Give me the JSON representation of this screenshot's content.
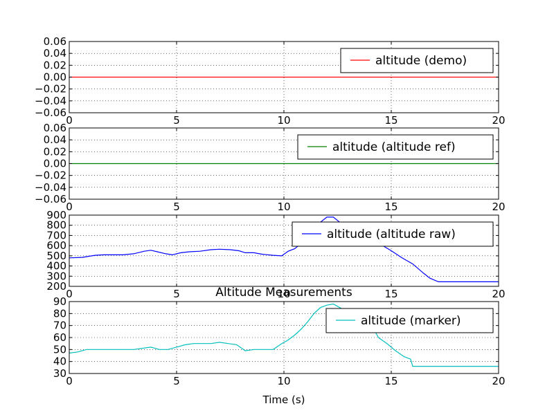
{
  "figure": {
    "title": "Altitude Measurements",
    "xlabel": "Time (s)"
  },
  "chart_data": [
    {
      "type": "line",
      "xlim": [
        0,
        20
      ],
      "ylim": [
        -0.06,
        0.06
      ],
      "xticks": [
        "0",
        "5",
        "10",
        "15",
        "20"
      ],
      "yticks": [
        "0.06",
        "0.04",
        "0.02",
        "0.00",
        "−0.02",
        "−0.04",
        "−0.06"
      ],
      "grid": true,
      "legend_position": "upper right",
      "series": [
        {
          "name": "altitude (demo)",
          "color": "#ff0000",
          "x": [
            0,
            20
          ],
          "y": [
            0,
            0
          ]
        }
      ]
    },
    {
      "type": "line",
      "xlim": [
        0,
        20
      ],
      "ylim": [
        -0.06,
        0.06
      ],
      "xticks": [
        "0",
        "5",
        "10",
        "15",
        "20"
      ],
      "yticks": [
        "0.06",
        "0.04",
        "0.02",
        "0.00",
        "−0.02",
        "−0.04",
        "−0.06"
      ],
      "grid": true,
      "legend_position": "upper right",
      "series": [
        {
          "name": "altitude (altitude ref)",
          "color": "#008000",
          "x": [
            0,
            20
          ],
          "y": [
            0,
            0
          ]
        }
      ]
    },
    {
      "type": "line",
      "xlim": [
        0,
        20
      ],
      "ylim": [
        200,
        900
      ],
      "xticks": [
        "0",
        "5",
        "10",
        "15",
        "20"
      ],
      "yticks": [
        "900",
        "800",
        "700",
        "600",
        "500",
        "400",
        "300",
        "200"
      ],
      "grid": true,
      "legend_position": "upper right",
      "series": [
        {
          "name": "altitude (altitude raw)",
          "color": "#0000ff",
          "x": [
            0,
            0.6,
            1.2,
            1.6,
            2.5,
            3.0,
            3.5,
            3.8,
            4.1,
            4.5,
            4.8,
            5.2,
            5.6,
            6.1,
            6.6,
            7.0,
            7.5,
            7.9,
            8.2,
            8.6,
            9.0,
            9.5,
            9.9,
            10.2,
            10.5,
            10.8,
            11.1,
            11.4,
            11.7,
            12.0,
            12.3,
            12.6,
            12.9,
            13.2,
            13.5,
            13.8,
            14.2,
            14.6,
            15.0,
            15.5,
            16.0,
            16.5,
            16.8,
            17.2,
            18.0,
            19.0,
            20.0
          ],
          "y": [
            480,
            485,
            505,
            510,
            510,
            520,
            545,
            555,
            540,
            520,
            510,
            530,
            540,
            545,
            560,
            565,
            560,
            550,
            530,
            530,
            515,
            505,
            500,
            545,
            570,
            620,
            680,
            760,
            830,
            880,
            880,
            830,
            790,
            760,
            740,
            700,
            650,
            600,
            550,
            480,
            420,
            330,
            280,
            245,
            245,
            245,
            245
          ]
        }
      ]
    },
    {
      "type": "line",
      "xlim": [
        0,
        20
      ],
      "ylim": [
        30,
        90
      ],
      "xticks": [
        "0",
        "5",
        "10",
        "15",
        "20"
      ],
      "yticks": [
        "90",
        "80",
        "70",
        "60",
        "50",
        "40",
        "30"
      ],
      "grid": true,
      "legend_position": "upper right",
      "series": [
        {
          "name": "altitude (marker)",
          "color": "#00bfbf",
          "x": [
            0,
            0.4,
            0.8,
            1.2,
            2.0,
            3.0,
            3.8,
            4.2,
            4.6,
            5.0,
            5.4,
            5.8,
            6.2,
            6.6,
            7.0,
            7.4,
            7.8,
            8.2,
            8.6,
            9.0,
            9.5,
            9.9,
            10.2,
            10.5,
            10.8,
            11.1,
            11.4,
            11.7,
            12.0,
            12.3,
            12.6,
            12.9,
            13.2,
            13.5,
            13.8,
            14.1,
            14.4,
            14.8,
            15.2,
            15.6,
            15.9,
            16.0,
            17.0,
            18.0,
            19.0,
            20.0
          ],
          "y": [
            47,
            48,
            50,
            50,
            50,
            50,
            52,
            50,
            50,
            52,
            54,
            55,
            55,
            55,
            56,
            55,
            54,
            49,
            50,
            50,
            50,
            55,
            58,
            62,
            67,
            73,
            80,
            85,
            87,
            88,
            85,
            82,
            80,
            78,
            75,
            70,
            60,
            55,
            49,
            44,
            42,
            36,
            36,
            36,
            36,
            36
          ]
        }
      ]
    }
  ]
}
